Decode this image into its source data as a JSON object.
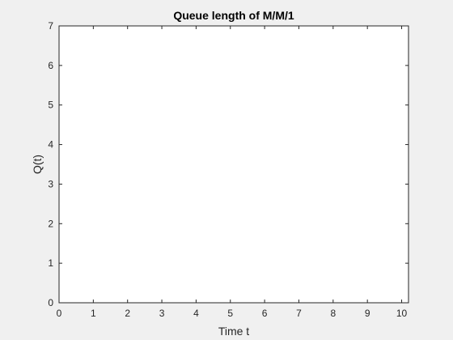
{
  "chart_data": {
    "type": "line",
    "title": "Queue length of M/M/1",
    "xlabel": "Time t",
    "ylabel": "Q(t)",
    "xlim": [
      0,
      10.2
    ],
    "ylim": [
      0,
      7
    ],
    "xticks": [
      "0",
      "1",
      "2",
      "3",
      "4",
      "5",
      "6",
      "7",
      "8",
      "9",
      "10"
    ],
    "yticks": [
      "0",
      "1",
      "2",
      "3",
      "4",
      "5",
      "6",
      "7"
    ],
    "series": [],
    "grid": false,
    "colors": {
      "figure_background": "#f0f0f0",
      "axes_background": "#ffffff",
      "axes_line": "#262626"
    }
  }
}
